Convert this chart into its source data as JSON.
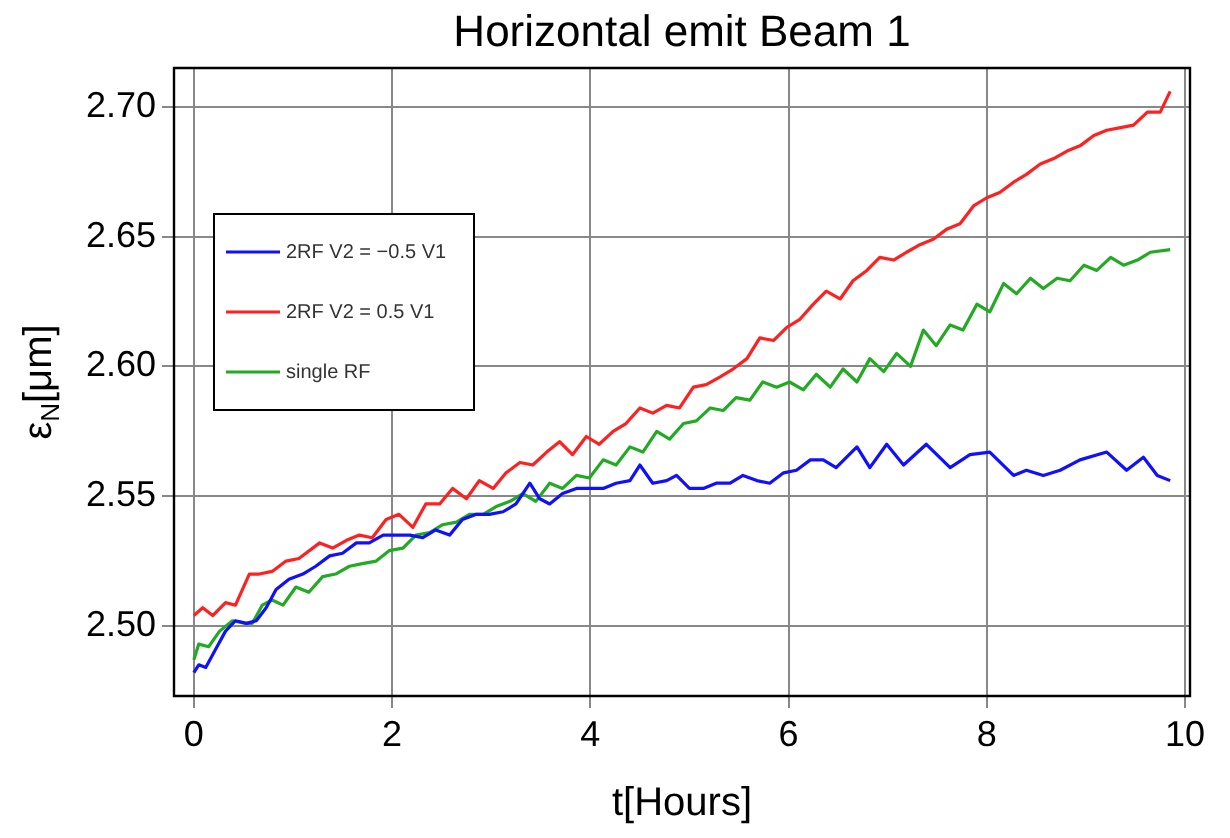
{
  "chart_data": {
    "type": "line",
    "title": "Horizontal emit Beam 1",
    "xlabel": "t[Hours]",
    "ylabel": "ε$_{N}$[μm]",
    "xlim": [
      -0.2,
      10.05
    ],
    "xticks": [
      0,
      2,
      4,
      6,
      8,
      10
    ],
    "ylim": [
      2.473,
      2.715
    ],
    "yticks": [
      {
        "value": 2.5,
        "label": "2.50"
      },
      {
        "value": 2.55,
        "label": "2.55"
      },
      {
        "value": 2.6,
        "label": "2.60"
      },
      {
        "value": 2.65,
        "label": "2.65"
      },
      {
        "value": 2.7,
        "label": "2.70"
      }
    ],
    "grid": true,
    "legend": "top left",
    "marker": "none",
    "line_style": "solid",
    "series": [
      {
        "name": "2RF V2 = −0.5 V1",
        "color": "#1010ff",
        "x": [
          0,
          0.05,
          0.12,
          0.22,
          0.32,
          0.42,
          0.53,
          0.63,
          0.73,
          0.83,
          0.96,
          1.1,
          1.23,
          1.37,
          1.5,
          1.64,
          1.77,
          1.91,
          2.04,
          2.18,
          2.31,
          2.44,
          2.58,
          2.71,
          2.85,
          2.98,
          3.12,
          3.25,
          3.39,
          3.49,
          3.59,
          3.72,
          3.86,
          3.99,
          4.13,
          4.26,
          4.4,
          4.5,
          4.63,
          4.77,
          4.87,
          5.0,
          5.14,
          5.27,
          5.41,
          5.54,
          5.68,
          5.81,
          5.95,
          6.08,
          6.22,
          6.35,
          6.48,
          6.69,
          6.82,
          6.99,
          7.16,
          7.39,
          7.63,
          7.83,
          8.03,
          8.27,
          8.4,
          8.57,
          8.74,
          8.94,
          9.21,
          9.41,
          9.58,
          9.72,
          9.85
        ],
        "values": [
          2.482,
          2.485,
          2.484,
          2.491,
          2.498,
          2.502,
          2.501,
          2.502,
          2.507,
          2.514,
          2.518,
          2.52,
          2.523,
          2.527,
          2.528,
          2.532,
          2.532,
          2.535,
          2.535,
          2.535,
          2.534,
          2.537,
          2.535,
          2.541,
          2.543,
          2.543,
          2.544,
          2.547,
          2.555,
          2.549,
          2.547,
          2.551,
          2.553,
          2.553,
          2.553,
          2.555,
          2.556,
          2.562,
          2.555,
          2.556,
          2.558,
          2.553,
          2.553,
          2.555,
          2.555,
          2.558,
          2.556,
          2.555,
          2.559,
          2.56,
          2.564,
          2.564,
          2.561,
          2.569,
          2.561,
          2.57,
          2.562,
          2.57,
          2.561,
          2.566,
          2.567,
          2.558,
          2.56,
          2.558,
          2.56,
          2.564,
          2.567,
          2.56,
          2.565,
          2.558,
          2.556
        ]
      },
      {
        "name": "2RF V2 = 0.5 V1",
        "color": "#ff2020",
        "x": [
          0,
          0.09,
          0.19,
          0.32,
          0.42,
          0.56,
          0.66,
          0.79,
          0.93,
          1.06,
          1.27,
          1.4,
          1.54,
          1.67,
          1.8,
          1.94,
          2.07,
          2.21,
          2.34,
          2.48,
          2.61,
          2.75,
          2.88,
          3.02,
          3.15,
          3.29,
          3.42,
          3.56,
          3.69,
          3.82,
          3.96,
          4.09,
          4.23,
          4.36,
          4.5,
          4.63,
          4.77,
          4.9,
          5.04,
          5.17,
          5.31,
          5.44,
          5.58,
          5.71,
          5.85,
          5.98,
          6.11,
          6.25,
          6.38,
          6.52,
          6.65,
          6.79,
          6.92,
          7.06,
          7.19,
          7.33,
          7.46,
          7.6,
          7.73,
          7.87,
          8.0,
          8.13,
          8.27,
          8.4,
          8.54,
          8.67,
          8.81,
          8.94,
          9.08,
          9.21,
          9.35,
          9.48,
          9.62,
          9.75,
          9.85
        ],
        "values": [
          2.504,
          2.507,
          2.504,
          2.509,
          2.508,
          2.52,
          2.52,
          2.521,
          2.525,
          2.526,
          2.532,
          2.53,
          2.533,
          2.535,
          2.534,
          2.541,
          2.543,
          2.538,
          2.547,
          2.547,
          2.553,
          2.549,
          2.556,
          2.553,
          2.559,
          2.563,
          2.562,
          2.567,
          2.571,
          2.566,
          2.573,
          2.57,
          2.575,
          2.578,
          2.584,
          2.582,
          2.585,
          2.584,
          2.592,
          2.593,
          2.596,
          2.599,
          2.603,
          2.611,
          2.61,
          2.615,
          2.618,
          2.624,
          2.629,
          2.626,
          2.633,
          2.637,
          2.642,
          2.641,
          2.644,
          2.647,
          2.649,
          2.653,
          2.655,
          2.662,
          2.665,
          2.667,
          2.671,
          2.674,
          2.678,
          2.68,
          2.683,
          2.685,
          2.689,
          2.691,
          2.692,
          2.693,
          2.698,
          2.698,
          2.706
        ]
      },
      {
        "name": "single RF",
        "color": "#22aa22",
        "x": [
          0,
          0.05,
          0.15,
          0.26,
          0.39,
          0.53,
          0.59,
          0.69,
          0.79,
          0.9,
          1.03,
          1.16,
          1.3,
          1.43,
          1.57,
          1.7,
          1.84,
          1.97,
          2.11,
          2.24,
          2.38,
          2.51,
          2.65,
          2.78,
          2.92,
          3.05,
          3.19,
          3.32,
          3.45,
          3.59,
          3.72,
          3.86,
          3.99,
          4.13,
          4.26,
          4.4,
          4.53,
          4.67,
          4.8,
          4.94,
          5.07,
          5.21,
          5.34,
          5.47,
          5.61,
          5.74,
          5.88,
          6.01,
          6.15,
          6.28,
          6.42,
          6.55,
          6.69,
          6.82,
          6.96,
          7.09,
          7.23,
          7.36,
          7.49,
          7.63,
          7.76,
          7.9,
          8.03,
          8.17,
          8.3,
          8.44,
          8.57,
          8.71,
          8.84,
          8.98,
          9.11,
          9.25,
          9.38,
          9.52,
          9.65,
          9.85
        ],
        "values": [
          2.487,
          2.493,
          2.492,
          2.498,
          2.502,
          2.501,
          2.501,
          2.508,
          2.51,
          2.508,
          2.515,
          2.513,
          2.519,
          2.52,
          2.523,
          2.524,
          2.525,
          2.529,
          2.53,
          2.535,
          2.536,
          2.539,
          2.54,
          2.543,
          2.543,
          2.546,
          2.548,
          2.551,
          2.548,
          2.555,
          2.553,
          2.558,
          2.557,
          2.564,
          2.562,
          2.569,
          2.567,
          2.575,
          2.572,
          2.578,
          2.579,
          2.584,
          2.583,
          2.588,
          2.587,
          2.594,
          2.592,
          2.594,
          2.591,
          2.597,
          2.592,
          2.599,
          2.594,
          2.603,
          2.598,
          2.605,
          2.6,
          2.614,
          2.608,
          2.616,
          2.614,
          2.624,
          2.621,
          2.632,
          2.628,
          2.634,
          2.63,
          2.634,
          2.633,
          2.639,
          2.637,
          2.642,
          2.639,
          2.641,
          2.644,
          2.645
        ]
      }
    ]
  }
}
